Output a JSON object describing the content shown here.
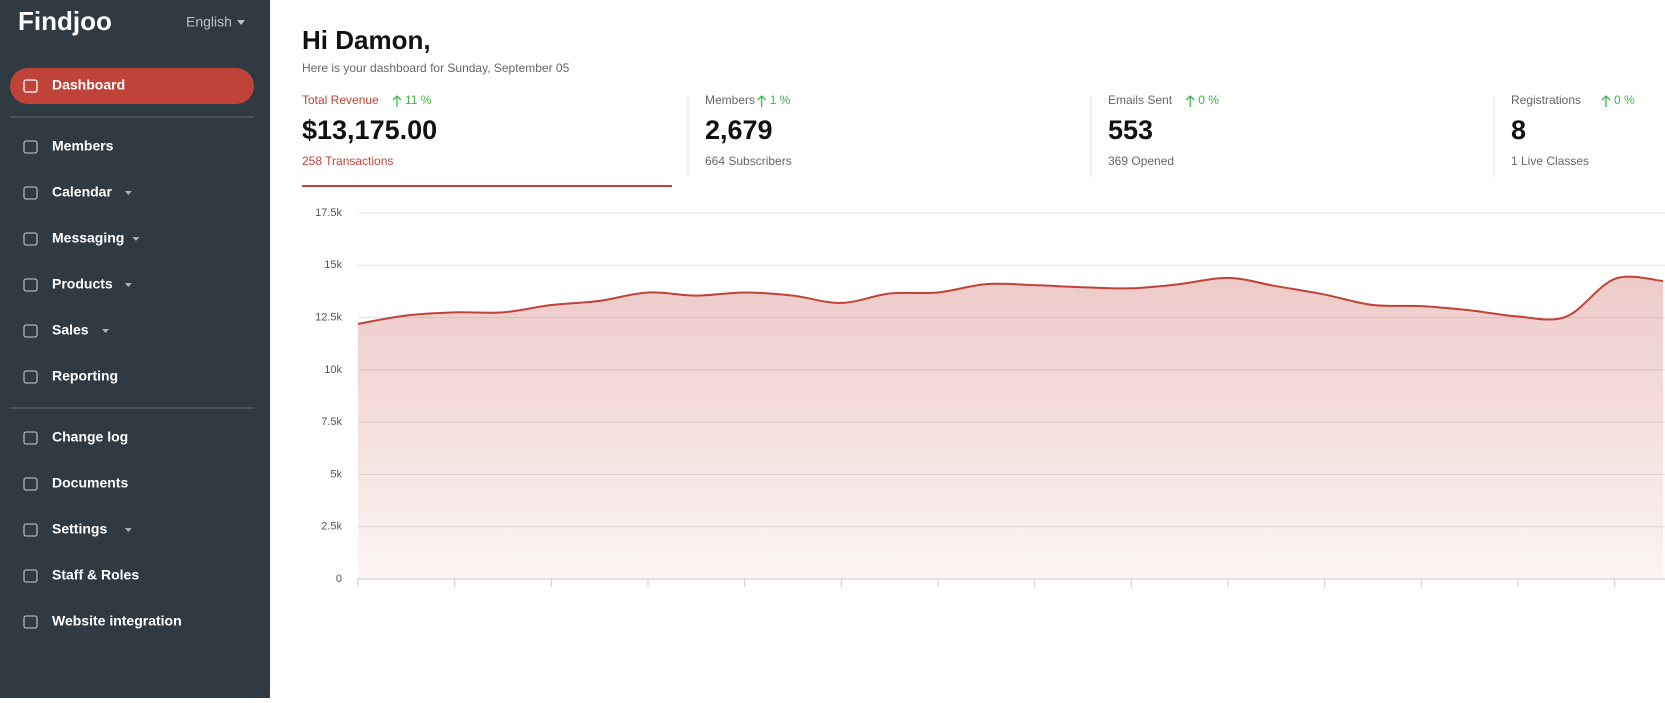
{
  "brand": "Findjoo",
  "language": "English",
  "nav": [
    [
      {
        "label": "Dashboard",
        "active": true,
        "dropdown": false
      }
    ],
    [
      {
        "label": "Members",
        "active": false,
        "dropdown": false
      },
      {
        "label": "Calendar",
        "active": false,
        "dropdown": true
      },
      {
        "label": "Messaging",
        "active": false,
        "dropdown": true
      },
      {
        "label": "Products",
        "active": false,
        "dropdown": true
      },
      {
        "label": "Sales",
        "active": false,
        "dropdown": true
      },
      {
        "label": "Reporting",
        "active": false,
        "dropdown": false
      }
    ],
    [
      {
        "label": "Change log",
        "active": false,
        "dropdown": false
      },
      {
        "label": "Documents",
        "active": false,
        "dropdown": false
      },
      {
        "label": "Settings",
        "active": false,
        "dropdown": true
      },
      {
        "label": "Staff & Roles",
        "active": false,
        "dropdown": false
      },
      {
        "label": "Website integration",
        "active": false,
        "dropdown": false
      }
    ]
  ],
  "header": {
    "title": "Hi Damon,",
    "subtitle": "Here is your dashboard for Sunday, September 05"
  },
  "stats": [
    {
      "label": "Total Revenue",
      "change": "11 %",
      "value": "$13,175.00",
      "sub": "258 Transactions",
      "active": true
    },
    {
      "label": "Members",
      "change": "1 %",
      "value": "2,679",
      "sub": "664 Subscribers",
      "active": false
    },
    {
      "label": "Emails Sent",
      "change": "0 %",
      "value": "553",
      "sub": "369 Opened",
      "active": false
    },
    {
      "label": "Registrations",
      "change": "0 %",
      "value": "8",
      "sub": "1 Live Classes",
      "active": false
    }
  ],
  "chart_data": {
    "type": "area",
    "color": "#c0433a",
    "categories": [
      null,
      null,
      null,
      null,
      null,
      null,
      null,
      null,
      null,
      null,
      null,
      null,
      null,
      null,
      null,
      null,
      null,
      null,
      null,
      null,
      null,
      null,
      null,
      null,
      null,
      null,
      null,
      null
    ],
    "values": [
      12200,
      12600,
      12750,
      12750,
      13100,
      13300,
      13700,
      13550,
      13700,
      13550,
      13200,
      13650,
      13700,
      14100,
      14050,
      13950,
      13900,
      14100,
      14400,
      14000,
      13600,
      13100,
      13050,
      12850,
      12550,
      12550,
      14350,
      14250
    ],
    "ylim": [
      0,
      17500
    ],
    "yticks": [
      0,
      {
        "value": 2500,
        "label": "2.5k"
      },
      {
        "value": 5000,
        "label": "5k"
      },
      {
        "value": 7500,
        "label": "7.5k"
      },
      {
        "value": 10000,
        "label": "10k"
      },
      {
        "value": 12500,
        "label": "12.5k"
      },
      {
        "value": 15000,
        "label": "15k"
      },
      {
        "value": 17500,
        "label": "17.5k"
      }
    ],
    "grid": true
  }
}
